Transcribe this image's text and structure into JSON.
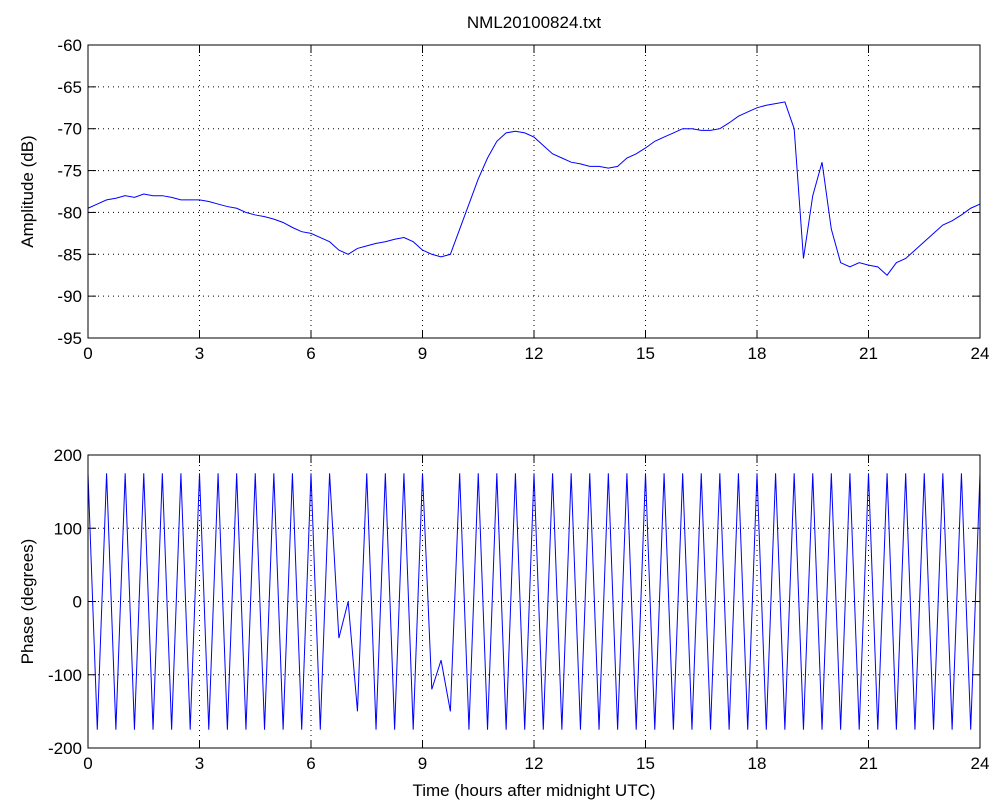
{
  "chart_data": [
    {
      "type": "line",
      "title": "NML20100824.txt",
      "ylabel": "Amplitude (dB)",
      "grid": true,
      "xlim": [
        0,
        24
      ],
      "xticks": [
        0,
        3,
        6,
        9,
        12,
        15,
        18,
        21,
        24
      ],
      "ylim": [
        -95,
        -60
      ],
      "yticks": [
        -95,
        -90,
        -85,
        -80,
        -75,
        -70,
        -65,
        -60
      ],
      "x": [
        0,
        0.25,
        0.5,
        0.75,
        1,
        1.25,
        1.5,
        1.75,
        2,
        2.25,
        2.5,
        2.75,
        3,
        3.25,
        3.5,
        3.75,
        4,
        4.25,
        4.5,
        4.75,
        5,
        5.25,
        5.5,
        5.75,
        6,
        6.25,
        6.5,
        6.75,
        7,
        7.25,
        7.5,
        7.75,
        8,
        8.25,
        8.5,
        8.75,
        9,
        9.25,
        9.5,
        9.75,
        10,
        10.25,
        10.5,
        10.75,
        11,
        11.25,
        11.5,
        11.75,
        12,
        12.25,
        12.5,
        12.75,
        13,
        13.25,
        13.5,
        13.75,
        14,
        14.25,
        14.5,
        14.75,
        15,
        15.25,
        15.5,
        15.75,
        16,
        16.25,
        16.5,
        16.75,
        17,
        17.25,
        17.5,
        17.75,
        18,
        18.25,
        18.5,
        18.75,
        19,
        19.25,
        19.5,
        19.75,
        20,
        20.25,
        20.5,
        20.75,
        21,
        21.25,
        21.5,
        21.75,
        22,
        22.25,
        22.5,
        22.75,
        23,
        23.25,
        23.5,
        23.75,
        24
      ],
      "series": [
        {
          "color": "#0000ff",
          "values": [
            -79.5,
            -79,
            -78.5,
            -78.3,
            -78,
            -78.2,
            -77.8,
            -78,
            -78,
            -78.2,
            -78.5,
            -78.5,
            -78.5,
            -78.7,
            -79,
            -79.3,
            -79.5,
            -80,
            -80.3,
            -80.5,
            -80.8,
            -81.2,
            -81.8,
            -82.3,
            -82.5,
            -83,
            -83.5,
            -84.5,
            -85,
            -84.3,
            -84,
            -83.7,
            -83.5,
            -83.2,
            -83,
            -83.5,
            -84.5,
            -85,
            -85.3,
            -85,
            -82,
            -79,
            -76,
            -73.5,
            -71.5,
            -70.5,
            -70.3,
            -70.5,
            -71,
            -72,
            -73,
            -73.5,
            -74,
            -74.2,
            -74.5,
            -74.5,
            -74.7,
            -74.5,
            -73.5,
            -73,
            -72.3,
            -71.5,
            -71,
            -70.5,
            -70,
            -70,
            -70.2,
            -70.2,
            -70,
            -69.3,
            -68.5,
            -68,
            -67.5,
            -67.2,
            -67,
            -66.8,
            -70,
            -85.5,
            -78,
            -74,
            -82,
            -86,
            -86.5,
            -86,
            -86.3,
            -86.5,
            -87.5,
            -86,
            -85.5,
            -84.5,
            -83.5,
            -82.5,
            -81.5,
            -81,
            -80.3,
            -79.5,
            -79
          ]
        }
      ]
    },
    {
      "type": "line",
      "xlabel": "Time (hours after midnight UTC)",
      "ylabel": "Phase (degrees)",
      "grid": true,
      "xlim": [
        0,
        24
      ],
      "xticks": [
        0,
        3,
        6,
        9,
        12,
        15,
        18,
        21,
        24
      ],
      "ylim": [
        -200,
        200
      ],
      "yticks": [
        -200,
        -100,
        0,
        100,
        200
      ],
      "x": [
        0,
        0.25,
        0.5,
        0.75,
        1,
        1.25,
        1.5,
        1.75,
        2,
        2.25,
        2.5,
        2.75,
        3,
        3.25,
        3.5,
        3.75,
        4,
        4.25,
        4.5,
        4.75,
        5,
        5.25,
        5.5,
        5.75,
        6,
        6.25,
        6.5,
        6.75,
        7,
        7.25,
        7.5,
        7.75,
        8,
        8.25,
        8.5,
        8.75,
        9,
        9.25,
        9.5,
        9.75,
        10,
        10.25,
        10.5,
        10.75,
        11,
        11.25,
        11.5,
        11.75,
        12,
        12.25,
        12.5,
        12.75,
        13,
        13.25,
        13.5,
        13.75,
        14,
        14.25,
        14.5,
        14.75,
        15,
        15.25,
        15.5,
        15.75,
        16,
        16.25,
        16.5,
        16.75,
        17,
        17.25,
        17.5,
        17.75,
        18,
        18.25,
        18.5,
        18.75,
        19,
        19.25,
        19.5,
        19.75,
        20,
        20.25,
        20.5,
        20.75,
        21,
        21.25,
        21.5,
        21.75,
        22,
        22.25,
        22.5,
        22.75,
        23,
        23.25,
        23.5,
        23.75,
        24
      ],
      "series": [
        {
          "color": "#0000ff",
          "values": [
            175,
            -175,
            175,
            -175,
            175,
            -175,
            175,
            -175,
            175,
            -175,
            175,
            -175,
            175,
            -175,
            175,
            -175,
            175,
            -175,
            175,
            -175,
            175,
            -175,
            175,
            -175,
            175,
            -175,
            175,
            -50,
            0,
            -150,
            175,
            -175,
            175,
            -175,
            175,
            -175,
            175,
            -120,
            -80,
            -150,
            175,
            -175,
            175,
            -175,
            175,
            -175,
            175,
            -175,
            175,
            -175,
            175,
            -175,
            175,
            -175,
            175,
            -175,
            175,
            -175,
            175,
            -175,
            175,
            -175,
            175,
            -175,
            175,
            -175,
            175,
            -175,
            175,
            -175,
            175,
            -175,
            175,
            -175,
            175,
            -175,
            175,
            -175,
            175,
            -175,
            175,
            -175,
            175,
            -175,
            175,
            -175,
            175,
            -175,
            175,
            -175,
            175,
            -175,
            175,
            -175,
            175,
            -175,
            175
          ]
        }
      ]
    }
  ]
}
